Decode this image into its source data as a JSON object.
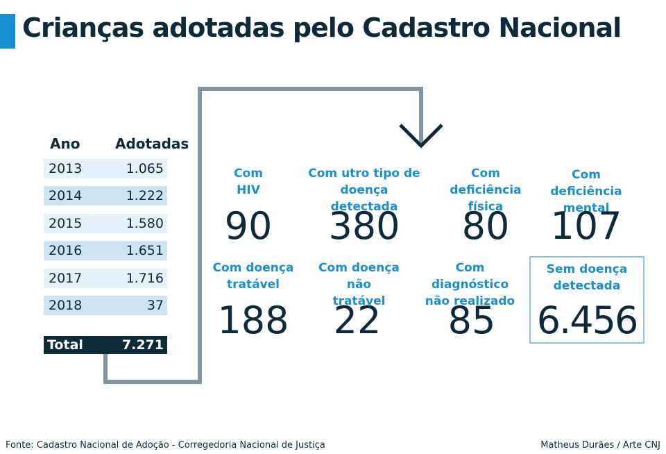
{
  "title": "Crianças adotadas pelo Cadastro Nacional",
  "colors": {
    "accent": "#1a8fd0",
    "dark": "#0d2a3a",
    "connector": "#7f97a2",
    "row_light": "#e6f2fa",
    "row_dark": "#cfe4f2"
  },
  "chart_data": [
    {
      "type": "table",
      "columns": [
        "Ano",
        "Adotadas"
      ],
      "rows": [
        [
          "2013",
          "1.065"
        ],
        [
          "2014",
          "1.222"
        ],
        [
          "2015",
          "1.580"
        ],
        [
          "2016",
          "1.651"
        ],
        [
          "2017",
          "1.716"
        ],
        [
          "2018",
          "37"
        ]
      ],
      "total": [
        "Total",
        "7.271"
      ]
    },
    {
      "type": "table",
      "categories": [
        {
          "label_lines": [
            "Com",
            "HIV"
          ],
          "value": "90"
        },
        {
          "label_lines": [
            "Com utro tipo de",
            "doença detectada"
          ],
          "value": "380"
        },
        {
          "label_lines": [
            "Com deficiência",
            "física"
          ],
          "value": "80"
        },
        {
          "label_lines": [
            "Com deficiência",
            "mental"
          ],
          "value": "107"
        },
        {
          "label_lines": [
            "Com doença",
            "tratável"
          ],
          "value": "188"
        },
        {
          "label_lines": [
            "Com doença não",
            "tratável"
          ],
          "value": "22"
        },
        {
          "label_lines": [
            "Com diagnóstico",
            "não realizado"
          ],
          "value": "85"
        },
        {
          "label_lines": [
            "Sem doença",
            "detectada"
          ],
          "value": "6.456",
          "highlighted": true
        }
      ]
    }
  ],
  "footer": {
    "source": "Fonte: Cadastro Nacional de Adoção - Corregedoria Nacional de Justiça",
    "credit": "Matheus Durães / Arte CNJ"
  }
}
